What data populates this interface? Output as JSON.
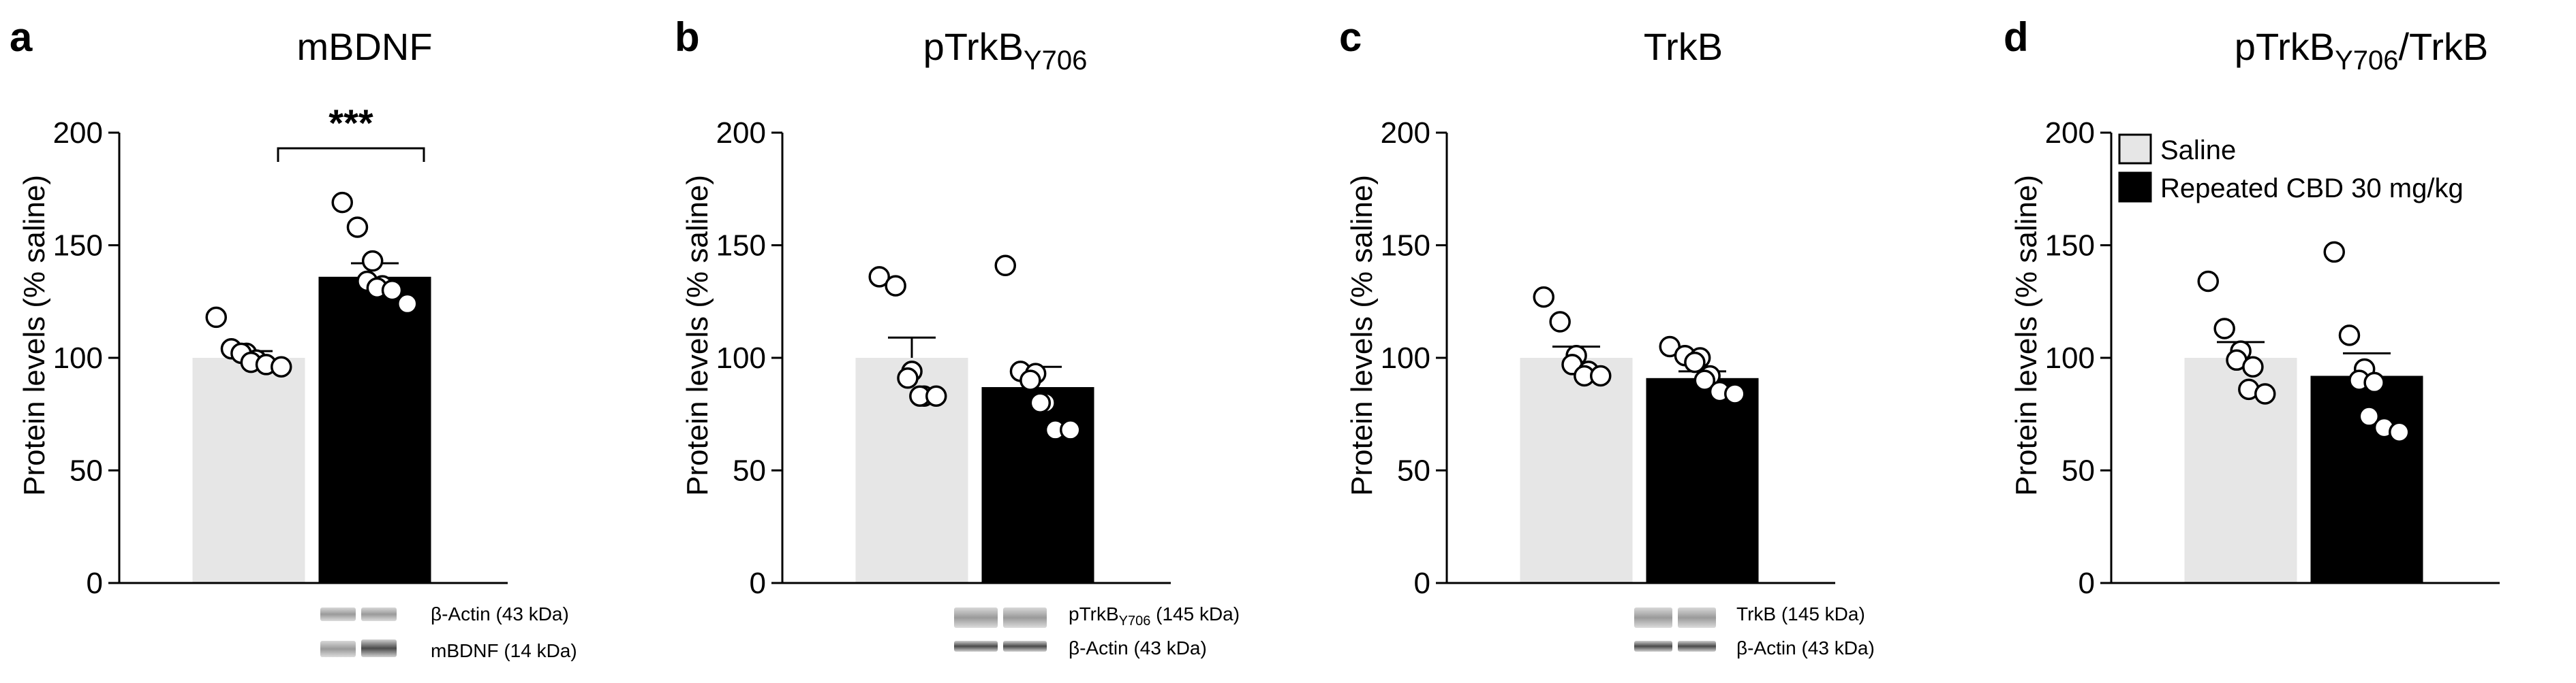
{
  "colors": {
    "saline": "#e6e6e6",
    "cbd": "#000000",
    "axis": "#000000",
    "point_fill": "#ffffff"
  },
  "legend": {
    "placement": "top-right of panel d",
    "items": [
      {
        "label": "Saline",
        "color": "#e6e6e6"
      },
      {
        "label": "Repeated CBD 30 mg/kg",
        "color": "#000000"
      }
    ]
  },
  "chart_data": [
    {
      "type": "bar",
      "panel": "a",
      "title": "mBDNF",
      "ylabel": "Protein levels (% saline)",
      "ylim": [
        0,
        200
      ],
      "yticks": [
        0,
        50,
        100,
        150,
        200
      ],
      "categories": [
        "Saline",
        "Repeated CBD 30 mg/kg"
      ],
      "values": [
        100,
        136
      ],
      "sem": [
        3,
        6
      ],
      "points": [
        [
          118,
          104,
          102,
          102,
          99,
          98,
          97,
          96
        ],
        [
          169,
          158,
          143,
          134,
          132,
          131,
          130,
          124
        ]
      ],
      "significance": "***",
      "blot": {
        "bands": [
          "β-Actin (43 kDa)",
          "mBDNF (14 kDa)"
        ]
      }
    },
    {
      "type": "bar",
      "panel": "b",
      "title": "pTrkB",
      "title_sub": "Y706",
      "ylabel": "Protein levels (% saline)",
      "ylim": [
        0,
        200
      ],
      "yticks": [
        0,
        50,
        100,
        150,
        200
      ],
      "categories": [
        "Saline",
        "Repeated CBD 30 mg/kg"
      ],
      "values": [
        100,
        87
      ],
      "sem": [
        9,
        9
      ],
      "points": [
        [
          136,
          132,
          94,
          91,
          83,
          83,
          83
        ],
        [
          141,
          94,
          93,
          90,
          80,
          80,
          68,
          68
        ]
      ],
      "blot": {
        "bands": [
          "pTrkBY706 (145 kDa)",
          "β-Actin (43 kDa)"
        ]
      }
    },
    {
      "type": "bar",
      "panel": "c",
      "title": "TrkB",
      "ylabel": "Protein levels (% saline)",
      "ylim": [
        0,
        200
      ],
      "yticks": [
        0,
        50,
        100,
        150,
        200
      ],
      "categories": [
        "Saline",
        "Repeated CBD 30 mg/kg"
      ],
      "values": [
        100,
        91
      ],
      "sem": [
        5,
        3
      ],
      "points": [
        [
          127,
          116,
          101,
          97,
          94,
          92,
          92
        ],
        [
          105,
          101,
          100,
          98,
          92,
          90,
          85,
          84
        ]
      ],
      "blot": {
        "bands": [
          "TrkB (145 kDa)",
          "β-Actin (43 kDa)"
        ]
      }
    },
    {
      "type": "bar",
      "panel": "d",
      "title": "pTrkB",
      "title_sub": "Y706",
      "title_suffix": "/TrkB",
      "ylabel": "Protein levels (% saline)",
      "ylim": [
        0,
        200
      ],
      "yticks": [
        0,
        50,
        100,
        150,
        200
      ],
      "categories": [
        "Saline",
        "Repeated CBD 30 mg/kg"
      ],
      "values": [
        100,
        92
      ],
      "sem": [
        7,
        10
      ],
      "points": [
        [
          134,
          113,
          103,
          99,
          96,
          86,
          84
        ],
        [
          147,
          110,
          95,
          90,
          89,
          74,
          69,
          67
        ]
      ]
    }
  ]
}
